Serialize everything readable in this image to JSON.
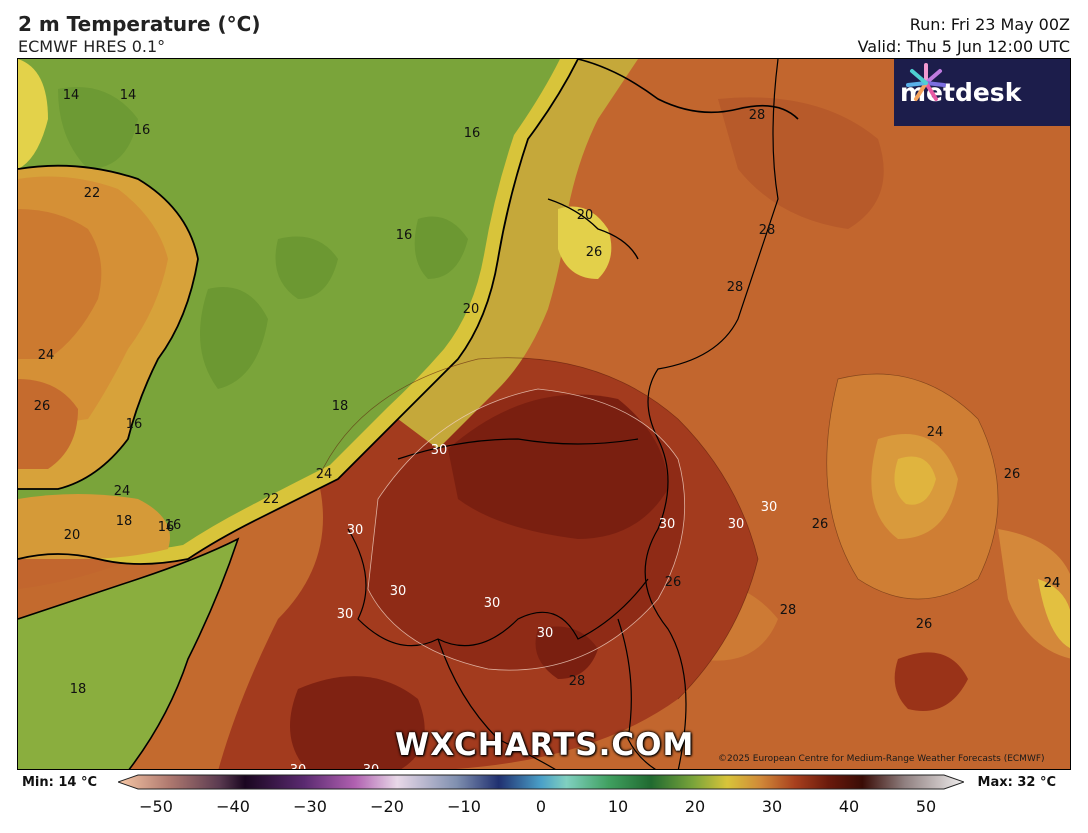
{
  "header": {
    "title": "2 m Temperature (°C)",
    "subtitle": "ECMWF HRES 0.1°",
    "run": "Run: Fri 23 May 00Z",
    "valid": "Valid: Thu 5 Jun 12:00 UTC"
  },
  "logo": {
    "text": "metdesk",
    "icon": "metdesk-flower-icon"
  },
  "watermark": "WXCHARTS.COM",
  "copyright": "©2025 European Centre for Medium-Range Weather Forecasts (ECMWF)",
  "colorbar": {
    "min_label": "Min: 14 °C",
    "max_label": "Max: 32 °C",
    "ticks": [
      "−50",
      "−40",
      "−30",
      "−20",
      "−10",
      "0",
      "10",
      "20",
      "30",
      "40",
      "50"
    ],
    "range": [
      -50,
      50
    ]
  },
  "contour_labels": [
    "14",
    "14",
    "16",
    "16",
    "22",
    "16",
    "24",
    "26",
    "16",
    "20",
    "26",
    "20",
    "18",
    "16",
    "24",
    "18",
    "16",
    "20",
    "30",
    "24",
    "22",
    "30",
    "30",
    "30",
    "30",
    "30",
    "30",
    "30",
    "30",
    "28",
    "24",
    "28",
    "28",
    "24",
    "26",
    "26",
    "26",
    "28",
    "26",
    "24",
    "18",
    "30",
    "30",
    "28"
  ],
  "colors": {
    "sea_green": "#7aa43a",
    "coast_yellow": "#d8c43a",
    "land_orange": "#c2662e",
    "hot_red": "#8e2414",
    "logo_bg": "#1c1d4b"
  }
}
